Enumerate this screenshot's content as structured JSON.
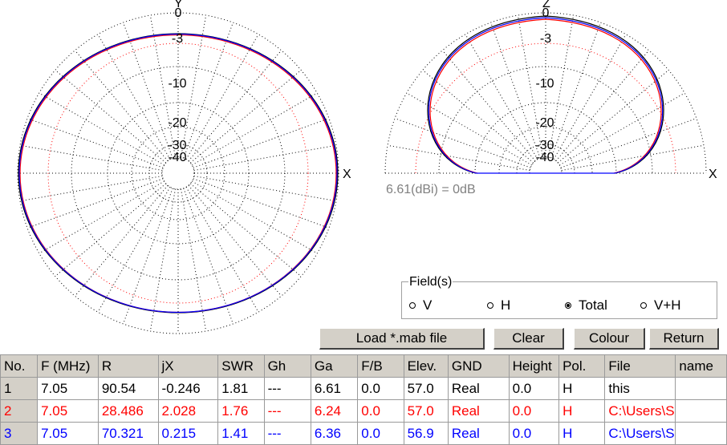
{
  "plots": {
    "horizontal": {
      "top_axis": "Y",
      "right_axis": "X",
      "ring_labels": [
        "0",
        "-3",
        "-10",
        "-20",
        "-30",
        "-40"
      ]
    },
    "vertical": {
      "top_axis": "Z",
      "right_axis": "X",
      "ring_labels": [
        "0",
        "-3",
        "-10",
        "-20",
        "-30",
        "-40"
      ]
    },
    "reference_note": "6.61(dBi) = 0dB",
    "trace_colors": [
      "#000000",
      "#ff0000",
      "#0000ff"
    ]
  },
  "field": {
    "title": "Field(s)",
    "options": [
      "V",
      "H",
      "Total",
      "V+H"
    ],
    "selected": "Total"
  },
  "buttons": {
    "load": "Load *.mab file",
    "clear": "Clear",
    "colour": "Colour",
    "return": "Return"
  },
  "table": {
    "columns": [
      "No.",
      "F (MHz)",
      "R",
      "jX",
      "SWR",
      "Gh",
      "Ga",
      "F/B",
      "Elev.",
      "GND",
      "Height",
      "Pol.",
      "File",
      "name"
    ],
    "rows": [
      [
        "1",
        "7.05",
        "90.54",
        "-0.246",
        "1.81",
        "---",
        "6.61",
        "0.0",
        "57.0",
        "Real",
        "0.0",
        "H",
        "this",
        ""
      ],
      [
        "2",
        "7.05",
        "28.486",
        "2.028",
        "1.76",
        "---",
        "6.24",
        "0.0",
        "57.0",
        "Real",
        "0.0",
        "H",
        "C:\\Users\\S",
        ""
      ],
      [
        "3",
        "7.05",
        "70.321",
        "0.215",
        "1.41",
        "---",
        "6.36",
        "0.0",
        "56.9",
        "Real",
        "0.0",
        "H",
        "C:\\Users\\S",
        ""
      ]
    ]
  }
}
